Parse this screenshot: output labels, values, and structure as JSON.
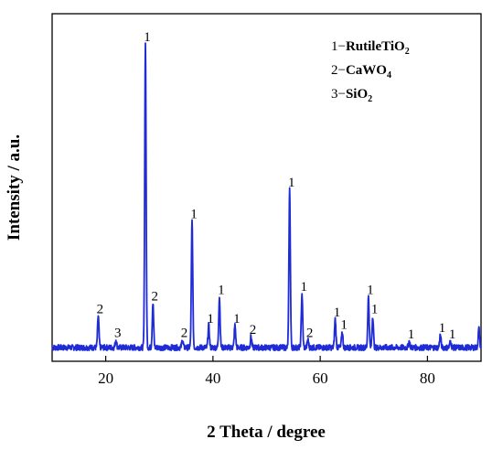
{
  "chart_data": {
    "type": "line",
    "title": "",
    "xlabel": "2 Theta / degree",
    "ylabel": "Intensity / a.u.",
    "xlim": [
      10,
      90
    ],
    "ylim": [
      0,
      100
    ],
    "x_ticks": [
      20,
      40,
      60,
      80
    ],
    "y_ticks_shown": false,
    "grid": false,
    "line_color": "#1f2bd6",
    "baseline_intensity": 4,
    "noise_amplitude": 0.9,
    "series": [
      {
        "peaks": [
          {
            "x": 18.6,
            "y": 14,
            "label": "2"
          },
          {
            "x": 21.9,
            "y": 6.5,
            "label": "3"
          },
          {
            "x": 27.4,
            "y": 100,
            "label": "1"
          },
          {
            "x": 28.8,
            "y": 18,
            "label": "2"
          },
          {
            "x": 34.3,
            "y": 6.5,
            "label": "2"
          },
          {
            "x": 36.1,
            "y": 44,
            "label": "1"
          },
          {
            "x": 39.2,
            "y": 11,
            "label": "1"
          },
          {
            "x": 41.2,
            "y": 20,
            "label": "1"
          },
          {
            "x": 44.1,
            "y": 11,
            "label": "1"
          },
          {
            "x": 47.1,
            "y": 7.5,
            "label": "2"
          },
          {
            "x": 54.3,
            "y": 54,
            "label": "1"
          },
          {
            "x": 56.6,
            "y": 21,
            "label": "1"
          },
          {
            "x": 57.7,
            "y": 6.5,
            "label": "2"
          },
          {
            "x": 62.8,
            "y": 13,
            "label": "1"
          },
          {
            "x": 64.1,
            "y": 9,
            "label": "1"
          },
          {
            "x": 69.0,
            "y": 20,
            "label": "1"
          },
          {
            "x": 69.8,
            "y": 14,
            "label": "1"
          },
          {
            "x": 76.6,
            "y": 6,
            "label": "1"
          },
          {
            "x": 82.4,
            "y": 8,
            "label": "1"
          },
          {
            "x": 84.3,
            "y": 6,
            "label": "1"
          },
          {
            "x": 89.6,
            "y": 10,
            "label": null
          }
        ]
      }
    ],
    "legend": {
      "position": "top-right",
      "entries": [
        {
          "prefix": "1−",
          "formula": "RutileTiO",
          "subscript": "2"
        },
        {
          "prefix": "2−",
          "formula": "CaWO",
          "subscript": "4"
        },
        {
          "prefix": "3−",
          "formula": "SiO",
          "subscript": "2"
        }
      ]
    }
  }
}
